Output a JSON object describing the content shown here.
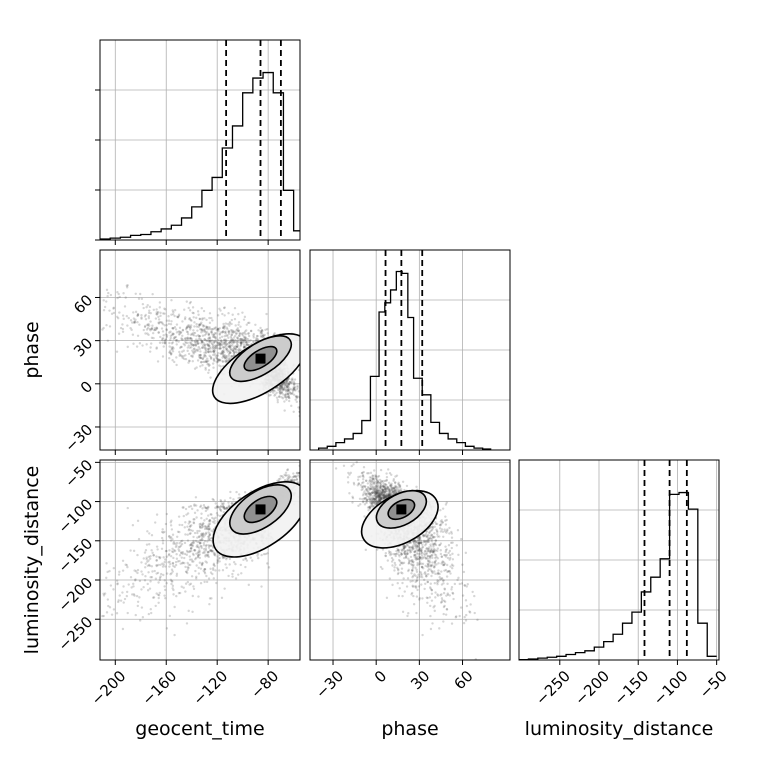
{
  "chart_data": {
    "type": "corner",
    "parameters": [
      "geocent_time",
      "phase",
      "luminosity_distance"
    ],
    "axis_labels": {
      "x": [
        "geocent_time",
        "phase",
        "luminosity_distance"
      ],
      "y": [
        "",
        "phase",
        "luminosity_distance"
      ]
    },
    "ranges": {
      "geocent_time": [
        -212,
        -55
      ],
      "phase": [
        -46,
        93
      ],
      "luminosity_distance": [
        -302,
        -47
      ]
    },
    "ticks": {
      "geocent_time": [
        -200,
        -160,
        -120,
        -80
      ],
      "phase": [
        -30,
        0,
        30,
        60
      ],
      "luminosity_distance": [
        -250,
        -200,
        -150,
        -100,
        -50
      ]
    },
    "quantiles": {
      "geocent_time": [
        -113,
        -86,
        -70
      ],
      "phase": [
        6.5,
        17.5,
        32
      ],
      "luminosity_distance": [
        -142,
        -110,
        -88
      ]
    },
    "histograms": {
      "geocent_time": {
        "edges": [
          -212,
          -204,
          -196,
          -188,
          -180,
          -172,
          -164,
          -156,
          -148,
          -140,
          -132,
          -124,
          -116,
          -108,
          -100,
          -92,
          -84,
          -76,
          -68,
          -60,
          -55
        ],
        "counts": [
          0.005,
          0.01,
          0.015,
          0.025,
          0.03,
          0.045,
          0.06,
          0.08,
          0.12,
          0.18,
          0.27,
          0.34,
          0.5,
          0.62,
          0.8,
          0.88,
          0.91,
          0.8,
          0.27,
          0.05
        ]
      },
      "phase": {
        "edges": [
          -40,
          -34,
          -28,
          -22,
          -16,
          -10,
          -4,
          2,
          6,
          10,
          14,
          18,
          22,
          26,
          32,
          38,
          44,
          50,
          56,
          62,
          68,
          74,
          80
        ],
        "counts": [
          0.01,
          0.02,
          0.04,
          0.06,
          0.09,
          0.16,
          0.4,
          0.75,
          0.8,
          0.87,
          0.97,
          0.96,
          0.72,
          0.39,
          0.3,
          0.15,
          0.09,
          0.06,
          0.04,
          0.02,
          0.01,
          0.005
        ]
      },
      "luminosity_distance": {
        "edges": [
          -302,
          -290,
          -278,
          -266,
          -254,
          -242,
          -230,
          -218,
          -206,
          -194,
          -182,
          -170,
          -158,
          -146,
          -134,
          -122,
          -110,
          -98,
          -86,
          -74,
          -62,
          -50
        ],
        "counts": [
          0.002,
          0.005,
          0.01,
          0.015,
          0.02,
          0.03,
          0.04,
          0.05,
          0.07,
          0.1,
          0.14,
          0.2,
          0.26,
          0.37,
          0.45,
          0.55,
          0.9,
          0.91,
          0.82,
          0.2,
          0.02
        ]
      }
    },
    "hist_ymax": 1.0,
    "scatter_samples": 2400,
    "points_correlation": {
      "phase|geocent_time": -0.8,
      "luminosity_distance|geocent_time": 0.85,
      "luminosity_distance|phase": -0.7
    },
    "grid": true
  }
}
